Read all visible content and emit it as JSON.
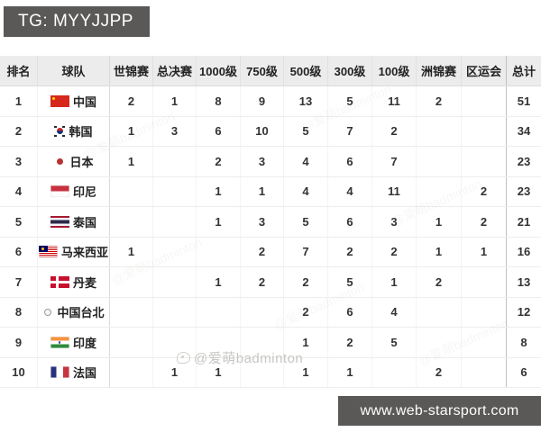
{
  "badge": {
    "text": "TG: MYYJJPP"
  },
  "footer": {
    "url": "www.web-starsport.com"
  },
  "watermark": {
    "credit": "@爱萌badminton"
  },
  "colors": {
    "bar_bg": "#5b5957",
    "header_bg": "#ececec",
    "china_flag_red": "#d7281c",
    "text": "#333333"
  },
  "chart_data": {
    "type": "table",
    "columns": [
      "排名",
      "球队",
      "世锦赛",
      "总决赛",
      "1000级",
      "750级",
      "500级",
      "300级",
      "100级",
      "洲锦赛",
      "区运会",
      "总计"
    ],
    "rows": [
      {
        "rank": "1",
        "team": "中国",
        "flag": "cn",
        "values": [
          "2",
          "1",
          "8",
          "9",
          "13",
          "5",
          "11",
          "2",
          ""
        ],
        "total": "51"
      },
      {
        "rank": "2",
        "team": "韩国",
        "flag": "kr",
        "values": [
          "1",
          "3",
          "6",
          "10",
          "5",
          "7",
          "2",
          "",
          ""
        ],
        "total": "34"
      },
      {
        "rank": "3",
        "team": "日本",
        "flag": "jp",
        "values": [
          "1",
          "",
          "2",
          "3",
          "4",
          "6",
          "7",
          "",
          ""
        ],
        "total": "23"
      },
      {
        "rank": "4",
        "team": "印尼",
        "flag": "id",
        "values": [
          "",
          "",
          "1",
          "1",
          "4",
          "4",
          "11",
          "",
          "2"
        ],
        "total": "23"
      },
      {
        "rank": "5",
        "team": "泰国",
        "flag": "th",
        "values": [
          "",
          "",
          "1",
          "3",
          "5",
          "6",
          "3",
          "1",
          "2"
        ],
        "total": "21"
      },
      {
        "rank": "6",
        "team": "马来西亚",
        "flag": "my",
        "values": [
          "1",
          "",
          "",
          "2",
          "7",
          "2",
          "2",
          "1",
          "1"
        ],
        "total": "16"
      },
      {
        "rank": "7",
        "team": "丹麦",
        "flag": "dk",
        "values": [
          "",
          "",
          "1",
          "2",
          "2",
          "5",
          "1",
          "2",
          ""
        ],
        "total": "13"
      },
      {
        "rank": "8",
        "team": "中国台北",
        "flag": "tw",
        "values": [
          "",
          "",
          "",
          "",
          "2",
          "6",
          "4",
          "",
          ""
        ],
        "total": "12"
      },
      {
        "rank": "9",
        "team": "印度",
        "flag": "in",
        "values": [
          "",
          "",
          "",
          "",
          "1",
          "2",
          "5",
          "",
          ""
        ],
        "total": "8"
      },
      {
        "rank": "10",
        "team": "法国",
        "flag": "fr",
        "values": [
          "",
          "1",
          "1",
          "",
          "1",
          "1",
          "",
          "2",
          ""
        ],
        "total": "6"
      }
    ]
  }
}
